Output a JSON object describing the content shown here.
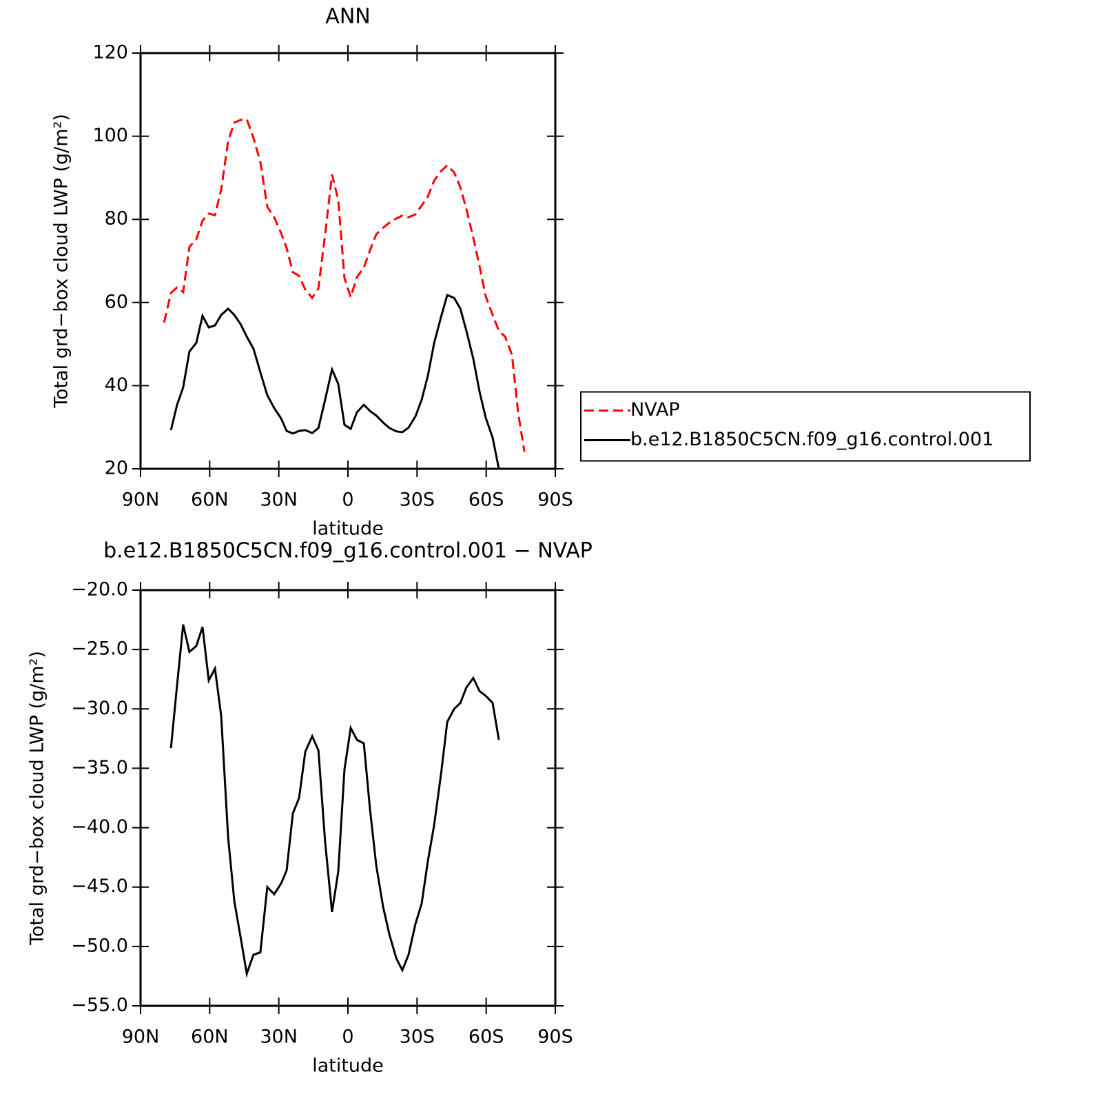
{
  "chart_data": [
    {
      "type": "line",
      "title": "ANN",
      "xlabel": "latitude",
      "ylabel": "Total grd−box cloud LWP (g/m²)",
      "x": [
        79.8,
        76.8,
        74.2,
        71.5,
        68.8,
        65.8,
        63.1,
        60.4,
        57.7,
        55.0,
        52.0,
        49.3,
        46.6,
        43.9,
        41.0,
        38.0,
        35.0,
        32.0,
        29.0,
        26.6,
        23.9,
        21.2,
        18.5,
        15.5,
        12.8,
        9.9,
        6.9,
        4.2,
        1.5,
        -1.2,
        -3.9,
        -6.9,
        -9.6,
        -12.3,
        -15.3,
        -18.0,
        -21.0,
        -23.6,
        -26.3,
        -29.3,
        -32.0,
        -34.7,
        -37.4,
        -40.4,
        -43.1,
        -46.1,
        -48.8,
        -51.4,
        -54.4,
        -57.1,
        -59.8,
        -62.8,
        -65.5,
        -68.2,
        -71.2,
        -73.9,
        -76.6
      ],
      "series": [
        {
          "name": "NVAP",
          "color": "#ff0000",
          "line_style": "dashed",
          "values": [
            55.2,
            62.3,
            63.6,
            62.5,
            73.4,
            75.2,
            79.7,
            81.4,
            81.0,
            87.2,
            98.8,
            103.3,
            103.9,
            104.1,
            99.6,
            93.8,
            83.0,
            80.5,
            76.7,
            73.1,
            67.3,
            66.4,
            63.1,
            61.1,
            63.4,
            76.4,
            90.8,
            84.7,
            65.9,
            61.3,
            66.1,
            68.4,
            72.6,
            76.4,
            78.0,
            79.2,
            80.2,
            80.9,
            80.5,
            81.2,
            83.3,
            85.5,
            89.3,
            91.6,
            93.0,
            91.3,
            87.7,
            82.5,
            75.6,
            68.8,
            61.5,
            57.0,
            53.2,
            51.8,
            47.4,
            33.3,
            24.1
          ]
        },
        {
          "name": "b.e12.B1850C5CN.f09_g16.control.001",
          "color": "#000000",
          "line_style": "solid",
          "values": [
            null,
            29.3,
            35.3,
            39.6,
            48.2,
            50.3,
            56.8,
            54.0,
            54.5,
            57.0,
            58.5,
            57.0,
            54.8,
            51.8,
            48.9,
            43.2,
            37.7,
            34.6,
            32.1,
            29.1,
            28.5,
            29.1,
            29.3,
            28.6,
            29.8,
            36.6,
            43.9,
            40.4,
            30.6,
            29.6,
            33.6,
            35.4,
            33.9,
            32.8,
            31.1,
            29.8,
            29.0,
            28.8,
            29.9,
            32.6,
            36.6,
            42.4,
            50.2,
            56.5,
            61.8,
            61.1,
            58.5,
            53.2,
            46.5,
            38.6,
            32.3,
            27.5,
            20.0,
            null,
            null,
            null,
            null
          ]
        }
      ],
      "xlim": [
        90,
        -90
      ],
      "xticks": [
        {
          "value": 90,
          "label": "90N"
        },
        {
          "value": 60,
          "label": "60N"
        },
        {
          "value": 30,
          "label": "30N"
        },
        0,
        {
          "value": -30,
          "label": "30S"
        },
        {
          "value": -60,
          "label": "60S"
        },
        {
          "value": -90,
          "label": "90S"
        }
      ],
      "ylim": [
        20,
        120
      ],
      "yticks": [
        20,
        40,
        60,
        80,
        100,
        120
      ],
      "legend": "right"
    },
    {
      "type": "line",
      "title": "b.e12.B1850C5CN.f09_g16.control.001 − NVAP",
      "xlabel": "latitude",
      "ylabel": "Total grd−box cloud LWP (g/m²)",
      "x": [
        76.8,
        74.2,
        71.5,
        68.8,
        65.8,
        63.1,
        60.4,
        57.7,
        55.0,
        52.0,
        49.3,
        46.6,
        43.9,
        41.0,
        38.0,
        35.0,
        32.0,
        29.0,
        26.6,
        23.9,
        21.2,
        18.5,
        15.5,
        12.8,
        9.9,
        6.9,
        4.2,
        1.5,
        -1.2,
        -3.9,
        -6.9,
        -9.6,
        -12.3,
        -15.3,
        -18.0,
        -21.0,
        -23.6,
        -26.3,
        -29.3,
        -32.0,
        -34.7,
        -37.4,
        -40.4,
        -43.1,
        -46.1,
        -48.8,
        -51.4,
        -54.4,
        -57.1,
        -59.8,
        -62.8,
        -65.5
      ],
      "series": [
        {
          "color": "#000000",
          "line_style": "solid",
          "values": [
            -33.3,
            -28.1,
            -22.9,
            -25.2,
            -24.7,
            -23.1,
            -27.6,
            -26.6,
            -30.6,
            -40.8,
            -46.2,
            -49.2,
            -52.3,
            -50.7,
            -50.5,
            -45.0,
            -45.6,
            -44.7,
            -43.6,
            -38.8,
            -37.5,
            -33.6,
            -32.3,
            -33.5,
            -41.2,
            -47.1,
            -43.7,
            -35.1,
            -31.6,
            -32.6,
            -32.9,
            -38.5,
            -43.2,
            -46.7,
            -49.0,
            -51.0,
            -52.0,
            -50.7,
            -48.1,
            -46.4,
            -42.8,
            -39.8,
            -35.5,
            -31.1,
            -30.0,
            -29.5,
            -28.2,
            -27.4,
            -28.5,
            -28.9,
            -29.5,
            -32.6
          ]
        }
      ],
      "xlim": [
        90,
        -90
      ],
      "xticks": [
        {
          "value": 90,
          "label": "90N"
        },
        {
          "value": 60,
          "label": "60N"
        },
        {
          "value": 30,
          "label": "30N"
        },
        0,
        {
          "value": -30,
          "label": "30S"
        },
        {
          "value": -60,
          "label": "60S"
        },
        {
          "value": -90,
          "label": "90S"
        }
      ],
      "ylim": [
        -55,
        -20
      ],
      "yticks": [
        {
          "value": -55,
          "label": "−55.0"
        },
        {
          "value": -50,
          "label": "−50.0"
        },
        {
          "value": -45,
          "label": "−45.0"
        },
        {
          "value": -40,
          "label": "−40.0"
        },
        {
          "value": -35,
          "label": "−35.0"
        },
        {
          "value": -30,
          "label": "−30.0"
        },
        {
          "value": -25,
          "label": "−25.0"
        },
        {
          "value": -20,
          "label": "−20.0"
        }
      ]
    }
  ]
}
